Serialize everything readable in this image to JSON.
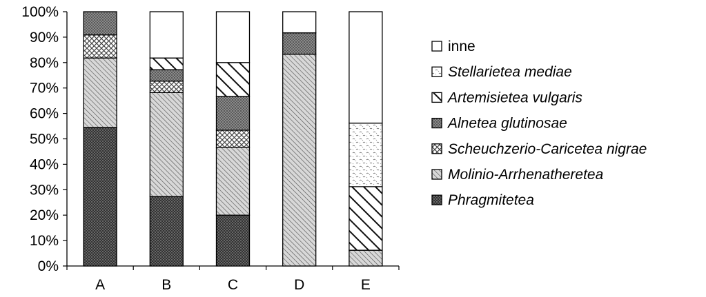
{
  "chart_data": {
    "type": "bar",
    "stacked": true,
    "percent": true,
    "categories": [
      "A",
      "B",
      "C",
      "D",
      "E"
    ],
    "ylim": [
      0,
      100
    ],
    "ytick_step": 10,
    "yticks": [
      "0%",
      "10%",
      "20%",
      "30%",
      "40%",
      "50%",
      "60%",
      "70%",
      "80%",
      "90%",
      "100%"
    ],
    "grid": false,
    "legend_position": "right",
    "series": [
      {
        "name": "Phragmitetea",
        "pattern": "dense-dots",
        "values": [
          54.5,
          27.3,
          20.0,
          0,
          0
        ]
      },
      {
        "name": "Molinio-Arrhenatheretea",
        "pattern": "fine-diagonal",
        "values": [
          27.3,
          40.9,
          26.7,
          83.3,
          6.2
        ]
      },
      {
        "name": "Scheuchzerio-Caricetea nigrae",
        "pattern": "crosshatch",
        "values": [
          9.1,
          4.5,
          6.7,
          0,
          0
        ]
      },
      {
        "name": "Alnetea glutinosae",
        "pattern": "medium-dots",
        "values": [
          9.1,
          4.5,
          13.3,
          8.4,
          0
        ]
      },
      {
        "name": "Artemisietea vulgaris",
        "pattern": "wide-diagonal",
        "values": [
          0,
          4.6,
          13.3,
          0,
          25.0
        ]
      },
      {
        "name": "Stellarietea mediae",
        "pattern": "squiggle",
        "values": [
          0,
          0,
          0,
          0,
          25.0
        ]
      },
      {
        "name": "inne",
        "pattern": "none",
        "values": [
          0,
          18.2,
          20.0,
          8.3,
          43.8
        ]
      }
    ],
    "legend_order": [
      "inne",
      "Stellarietea mediae",
      "Artemisietea vulgaris",
      "Alnetea glutinosae",
      "Scheuchzerio-Caricetea nigrae",
      "Molinio-Arrhenatheretea",
      "Phragmitetea"
    ]
  }
}
